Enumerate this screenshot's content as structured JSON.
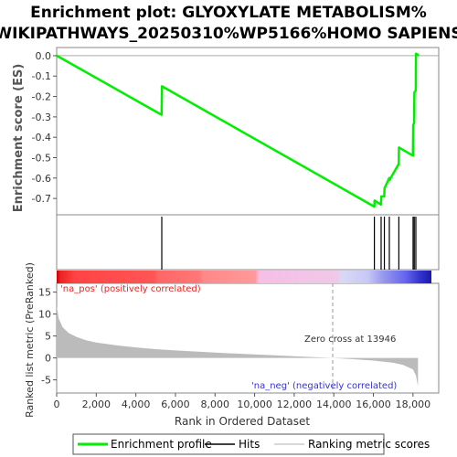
{
  "chart_data": {
    "type": "line",
    "title_lines": [
      "Enrichment plot: GLYOXYLATE METABOLISM%",
      "WIKIPATHWAYS_20250310%WP5166%HOMO SAPIENS"
    ],
    "xlabel": "Rank in Ordered Dataset",
    "ylabel_top": "Enrichment score (ES)",
    "ylabel_bottom": "Ranked list metric (PreRanked)",
    "x_range": [
      0,
      19300
    ],
    "x_ticks": [
      0,
      2000,
      4000,
      6000,
      8000,
      10000,
      12000,
      14000,
      16000,
      18000
    ],
    "x_tick_labels": [
      "0",
      "2,000",
      "4,000",
      "6,000",
      "8,000",
      "10,000",
      "12,000",
      "14,000",
      "16,000",
      "18,000"
    ],
    "es_ylim": [
      -0.78,
      0.04
    ],
    "es_ticks": [
      0.0,
      -0.1,
      -0.2,
      -0.3,
      -0.4,
      -0.5,
      -0.6,
      -0.7
    ],
    "es_tick_labels": [
      "0.0",
      "-0.1",
      "-0.2",
      "-0.3",
      "-0.4",
      "-0.5",
      "-0.6",
      "-0.7"
    ],
    "metric_ylim": [
      -8,
      17
    ],
    "metric_ticks": [
      15,
      10,
      5,
      0,
      -5
    ],
    "metric_tick_labels": [
      "15",
      "10",
      "5",
      "0",
      "-5"
    ],
    "enrichment_profile": {
      "name": "Enrichment profile",
      "color": "#00ee00",
      "x": [
        0,
        5300,
        5320,
        16050,
        16060,
        16380,
        16400,
        16550,
        16560,
        16800,
        16810,
        17280,
        17290,
        18000,
        18010,
        18060,
        18070,
        18140,
        18150,
        18300
      ],
      "y": [
        0.0,
        -0.29,
        -0.15,
        -0.74,
        -0.71,
        -0.73,
        -0.69,
        -0.69,
        -0.65,
        -0.6,
        -0.61,
        -0.53,
        -0.45,
        -0.49,
        -0.34,
        -0.33,
        -0.18,
        -0.17,
        0.01,
        0.0
      ]
    },
    "hits": {
      "name": "Hits",
      "positions": [
        5310,
        16050,
        16390,
        16555,
        16805,
        17285,
        18005,
        18065,
        18145
      ]
    },
    "ranking_metric": {
      "name": "Ranking metric scores",
      "x": [
        0,
        100,
        300,
        600,
        1000,
        1500,
        2000,
        3000,
        4000,
        5000,
        6000,
        8000,
        10000,
        12000,
        13946,
        15000,
        16000,
        17000,
        17500,
        18000,
        18150,
        18250
      ],
      "y": [
        12,
        9,
        7,
        5.7,
        4.8,
        4.0,
        3.5,
        2.9,
        2.4,
        2.0,
        1.7,
        1.2,
        0.8,
        0.4,
        0.0,
        -0.3,
        -0.6,
        -1.1,
        -1.6,
        -2.6,
        -4.0,
        -6.5
      ]
    },
    "zero_cross_label": "Zero cross at 13946",
    "zero_cross_x": 13946,
    "pos_label": "'na_pos' (positively correlated)",
    "neg_label": "'na_neg' (negatively correlated)",
    "legend": [
      "Enrichment profile",
      "Hits",
      "Ranking metric scores"
    ],
    "colors": {
      "es_line": "#00ee00",
      "hit_line": "#000000",
      "metric_fill": "#bbbbbb",
      "pos_text": "#ee2222",
      "neg_text": "#3333cc",
      "grid": "#aaaaaa"
    }
  }
}
